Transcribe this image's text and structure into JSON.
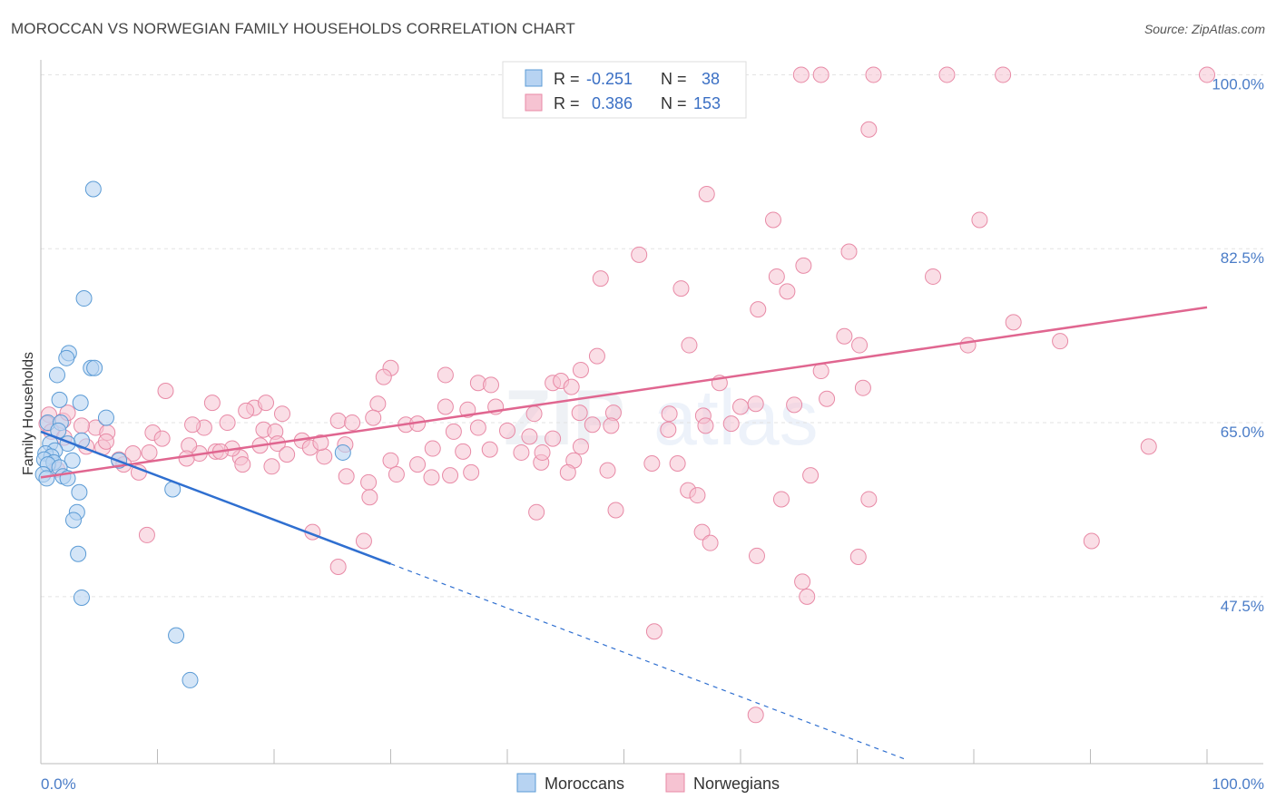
{
  "title": "MOROCCAN VS NORWEGIAN FAMILY HOUSEHOLDS CORRELATION CHART",
  "source": "Source: ZipAtlas.com",
  "colors": {
    "blue": "#5b9bd5",
    "blue_fill": "#b7d3f2",
    "blue_line": "#2f6fd0",
    "pink": "#e88aa6",
    "pink_fill": "#f6c3d2",
    "pink_line": "#e06690",
    "tick_text": "#4a7cc7"
  },
  "legend": {
    "rows": [
      {
        "r_label": "R =",
        "r_value": "-0.251",
        "n_label": "N =",
        "n_value": "38"
      },
      {
        "r_label": "R =",
        "r_value": "0.386",
        "n_label": "N =",
        "n_value": "153"
      }
    ]
  },
  "bottom_legend": [
    "Moroccans",
    "Norwegians"
  ],
  "watermark": {
    "zip": "ZIP",
    "atlas": "atlas"
  },
  "chart_data": {
    "type": "scatter",
    "title": "MOROCCAN VS NORWEGIAN FAMILY HOUSEHOLDS CORRELATION CHART",
    "xlabel": "",
    "ylabel": "Family Households",
    "xlim": [
      0,
      100
    ],
    "ylim": [
      30.7,
      101.5
    ],
    "x_tick_labels": [
      "0.0%",
      "100.0%"
    ],
    "y_ticks": [
      47.5,
      65.0,
      82.5,
      100.0
    ],
    "y_tick_labels": [
      "47.5%",
      "65.0%",
      "82.5%",
      "100.0%"
    ],
    "grid": true,
    "series": [
      {
        "name": "Moroccans",
        "r": -0.251,
        "n": 38,
        "trend": {
          "x": [
            0,
            30
          ],
          "y": [
            64.1,
            50.8
          ]
        },
        "trend_dashed": {
          "x": [
            30,
            74
          ],
          "y": [
            50.8,
            31.2
          ]
        },
        "points": [
          [
            4.5,
            88.5
          ],
          [
            3.7,
            77.5
          ],
          [
            2.4,
            72.0
          ],
          [
            2.2,
            71.5
          ],
          [
            4.3,
            70.5
          ],
          [
            4.6,
            70.5
          ],
          [
            1.4,
            69.8
          ],
          [
            1.6,
            67.3
          ],
          [
            3.4,
            67.0
          ],
          [
            5.6,
            65.5
          ],
          [
            0.6,
            65.0
          ],
          [
            1.7,
            65.0
          ],
          [
            1.5,
            64.2
          ],
          [
            3.5,
            63.2
          ],
          [
            0.8,
            62.9
          ],
          [
            2.3,
            62.9
          ],
          [
            1.2,
            62.2
          ],
          [
            0.4,
            61.9
          ],
          [
            0.9,
            61.6
          ],
          [
            0.3,
            61.3
          ],
          [
            1.1,
            61.0
          ],
          [
            0.6,
            60.8
          ],
          [
            2.7,
            61.2
          ],
          [
            6.7,
            61.2
          ],
          [
            1.6,
            60.5
          ],
          [
            0.2,
            59.8
          ],
          [
            1.9,
            59.6
          ],
          [
            2.3,
            59.4
          ],
          [
            0.5,
            59.4
          ],
          [
            3.3,
            58.0
          ],
          [
            3.1,
            56.0
          ],
          [
            2.8,
            55.2
          ],
          [
            11.3,
            58.3
          ],
          [
            25.9,
            62.0
          ],
          [
            3.2,
            51.8
          ],
          [
            3.5,
            47.4
          ],
          [
            11.6,
            43.6
          ],
          [
            12.8,
            39.1
          ]
        ]
      },
      {
        "name": "Norwegians",
        "r": 0.386,
        "n": 153,
        "trend": {
          "x": [
            0,
            100
          ],
          "y": [
            59.5,
            76.6
          ]
        },
        "points": [
          [
            65.2,
            100.0
          ],
          [
            66.9,
            100.0
          ],
          [
            71.4,
            100.0
          ],
          [
            77.7,
            100.0
          ],
          [
            82.5,
            100.0
          ],
          [
            100.0,
            100.0
          ],
          [
            71.0,
            94.5
          ],
          [
            57.1,
            88.0
          ],
          [
            62.8,
            85.4
          ],
          [
            80.5,
            85.4
          ],
          [
            69.3,
            82.2
          ],
          [
            51.3,
            81.9
          ],
          [
            65.4,
            80.8
          ],
          [
            48.0,
            79.5
          ],
          [
            63.1,
            79.7
          ],
          [
            54.9,
            78.5
          ],
          [
            64.0,
            78.2
          ],
          [
            76.5,
            79.7
          ],
          [
            61.5,
            76.4
          ],
          [
            83.4,
            75.1
          ],
          [
            68.9,
            73.7
          ],
          [
            87.4,
            73.2
          ],
          [
            55.6,
            72.8
          ],
          [
            70.2,
            72.8
          ],
          [
            79.5,
            72.8
          ],
          [
            47.7,
            71.7
          ],
          [
            30.0,
            70.5
          ],
          [
            46.3,
            70.3
          ],
          [
            66.9,
            70.2
          ],
          [
            34.7,
            69.8
          ],
          [
            29.4,
            69.6
          ],
          [
            37.5,
            69.0
          ],
          [
            43.9,
            69.0
          ],
          [
            38.6,
            68.8
          ],
          [
            44.6,
            69.2
          ],
          [
            45.5,
            68.6
          ],
          [
            58.2,
            69.0
          ],
          [
            70.5,
            68.5
          ],
          [
            10.7,
            68.2
          ],
          [
            28.9,
            66.9
          ],
          [
            34.7,
            66.6
          ],
          [
            36.6,
            66.3
          ],
          [
            39.0,
            66.6
          ],
          [
            60.0,
            66.6
          ],
          [
            61.3,
            66.9
          ],
          [
            64.6,
            66.8
          ],
          [
            46.2,
            66.0
          ],
          [
            42.3,
            65.9
          ],
          [
            53.9,
            65.9
          ],
          [
            67.4,
            67.4
          ],
          [
            14.7,
            67.0
          ],
          [
            18.3,
            66.5
          ],
          [
            19.3,
            67.0
          ],
          [
            17.6,
            66.2
          ],
          [
            20.7,
            65.9
          ],
          [
            25.5,
            65.2
          ],
          [
            28.5,
            65.5
          ],
          [
            26.7,
            65.0
          ],
          [
            56.8,
            65.7
          ],
          [
            49.1,
            66.0
          ],
          [
            48.9,
            64.7
          ],
          [
            53.8,
            64.3
          ],
          [
            57.0,
            64.7
          ],
          [
            0.7,
            65.8
          ],
          [
            1.9,
            65.2
          ],
          [
            2.3,
            66.0
          ],
          [
            4.7,
            64.5
          ],
          [
            0.5,
            64.9
          ],
          [
            0.9,
            64.1
          ],
          [
            3.5,
            64.7
          ],
          [
            5.7,
            64.0
          ],
          [
            9.6,
            64.0
          ],
          [
            14.0,
            64.5
          ],
          [
            13.0,
            64.8
          ],
          [
            16.0,
            65.0
          ],
          [
            19.1,
            64.3
          ],
          [
            20.1,
            64.1
          ],
          [
            31.3,
            64.8
          ],
          [
            32.3,
            64.9
          ],
          [
            35.4,
            64.1
          ],
          [
            37.5,
            64.5
          ],
          [
            40.0,
            64.2
          ],
          [
            47.3,
            64.8
          ],
          [
            59.2,
            64.9
          ],
          [
            46.3,
            62.6
          ],
          [
            43.9,
            63.4
          ],
          [
            41.9,
            63.6
          ],
          [
            41.2,
            62.0
          ],
          [
            38.5,
            62.3
          ],
          [
            36.2,
            62.1
          ],
          [
            33.6,
            62.4
          ],
          [
            26.1,
            62.8
          ],
          [
            24.3,
            61.6
          ],
          [
            22.4,
            63.2
          ],
          [
            20.3,
            62.9
          ],
          [
            18.8,
            62.7
          ],
          [
            17.1,
            61.5
          ],
          [
            16.4,
            62.4
          ],
          [
            15.0,
            62.1
          ],
          [
            13.6,
            61.9
          ],
          [
            12.7,
            62.7
          ],
          [
            10.4,
            63.4
          ],
          [
            9.3,
            62.0
          ],
          [
            7.9,
            61.9
          ],
          [
            6.7,
            61.3
          ],
          [
            5.3,
            62.5
          ],
          [
            5.6,
            63.1
          ],
          [
            3.9,
            62.6
          ],
          [
            2.0,
            63.5
          ],
          [
            1.4,
            60.3
          ],
          [
            7.1,
            60.8
          ],
          [
            8.4,
            60.0
          ],
          [
            12.5,
            61.4
          ],
          [
            15.4,
            62.1
          ],
          [
            17.3,
            60.8
          ],
          [
            19.8,
            60.6
          ],
          [
            21.1,
            61.8
          ],
          [
            30.0,
            61.2
          ],
          [
            23.1,
            62.5
          ],
          [
            24.0,
            63.0
          ],
          [
            32.3,
            60.8
          ],
          [
            36.9,
            60.0
          ],
          [
            35.1,
            59.7
          ],
          [
            33.5,
            59.5
          ],
          [
            30.5,
            59.8
          ],
          [
            26.2,
            59.6
          ],
          [
            28.1,
            59.0
          ],
          [
            28.2,
            57.5
          ],
          [
            42.9,
            61.0
          ],
          [
            45.7,
            61.2
          ],
          [
            48.6,
            60.2
          ],
          [
            52.4,
            60.9
          ],
          [
            55.5,
            58.2
          ],
          [
            56.3,
            57.7
          ],
          [
            66.0,
            59.7
          ],
          [
            54.6,
            60.9
          ],
          [
            71.0,
            57.3
          ],
          [
            63.5,
            57.3
          ],
          [
            56.7,
            54.0
          ],
          [
            57.4,
            52.9
          ],
          [
            61.4,
            51.6
          ],
          [
            70.1,
            51.5
          ],
          [
            65.3,
            49.0
          ],
          [
            65.7,
            47.5
          ],
          [
            42.5,
            56.0
          ],
          [
            49.3,
            56.2
          ],
          [
            23.3,
            54.0
          ],
          [
            27.7,
            53.1
          ],
          [
            25.5,
            50.5
          ],
          [
            9.1,
            53.7
          ],
          [
            52.6,
            44.0
          ],
          [
            61.3,
            35.6
          ],
          [
            90.1,
            53.1
          ],
          [
            95.0,
            62.6
          ],
          [
            45.2,
            60.0
          ],
          [
            43.0,
            62.0
          ]
        ]
      }
    ]
  }
}
